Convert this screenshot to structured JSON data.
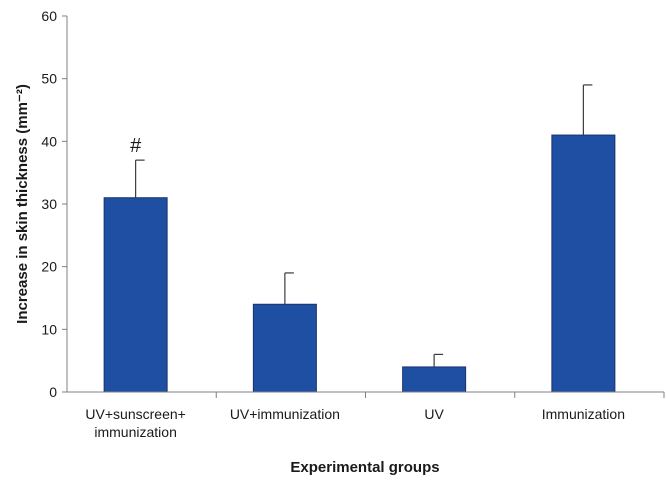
{
  "chart_data": {
    "type": "bar",
    "categories": [
      [
        "UV+sunscreen+",
        "immunization"
      ],
      [
        "UV+immunization"
      ],
      [
        "UV"
      ],
      [
        "Immunization"
      ]
    ],
    "values": [
      31,
      14,
      4,
      41
    ],
    "error_upper": [
      6,
      5,
      2,
      8
    ],
    "annotations": [
      "#",
      "",
      "",
      ""
    ],
    "xlabel": "Experimental groups",
    "ylabel": "Increase in skin thickness  (mm⁻²)",
    "ylim": [
      0,
      60
    ],
    "yticks": [
      0,
      10,
      20,
      30,
      40,
      50,
      60
    ],
    "grid": false,
    "bar_color": "#1f4fa3",
    "bar_edge_color": "#17336e",
    "axis_color": "#808080"
  }
}
